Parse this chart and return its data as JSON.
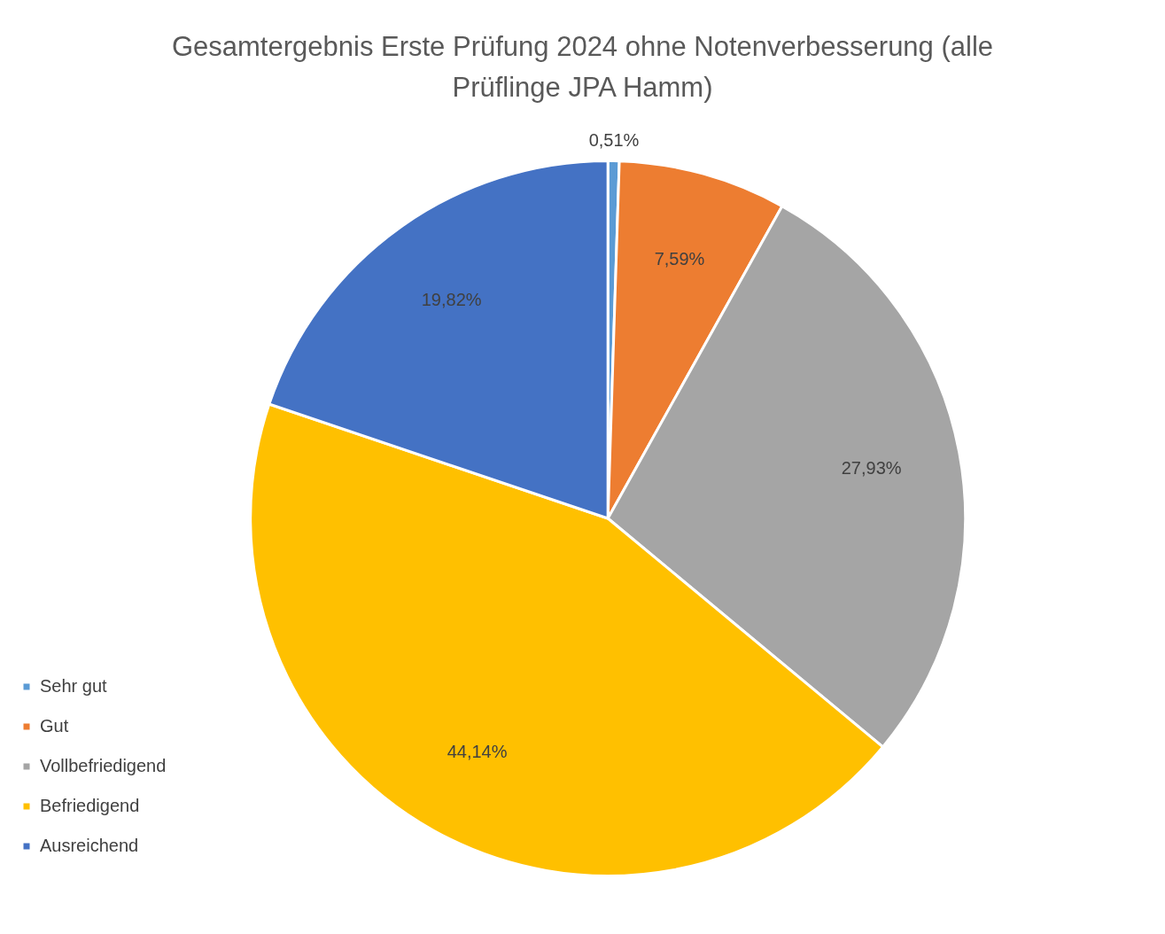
{
  "chart_data": {
    "type": "pie",
    "title": "Gesamtergebnis Erste Prüfung 2024 ohne Notenverbesserung (alle Prüflinge JPA Hamm)",
    "categories": [
      "Sehr gut",
      "Gut",
      "Vollbefriedigend",
      "Befriedigend",
      "Ausreichend"
    ],
    "values": [
      0.51,
      7.59,
      27.93,
      44.14,
      19.82
    ],
    "colors": [
      "#5b9bd5",
      "#ed7d31",
      "#a5a5a5",
      "#ffc000",
      "#4472c4"
    ],
    "value_labels": [
      "0,51%",
      "7,59%",
      "27,93%",
      "44,14%",
      "19,82%"
    ],
    "legend": "left"
  }
}
